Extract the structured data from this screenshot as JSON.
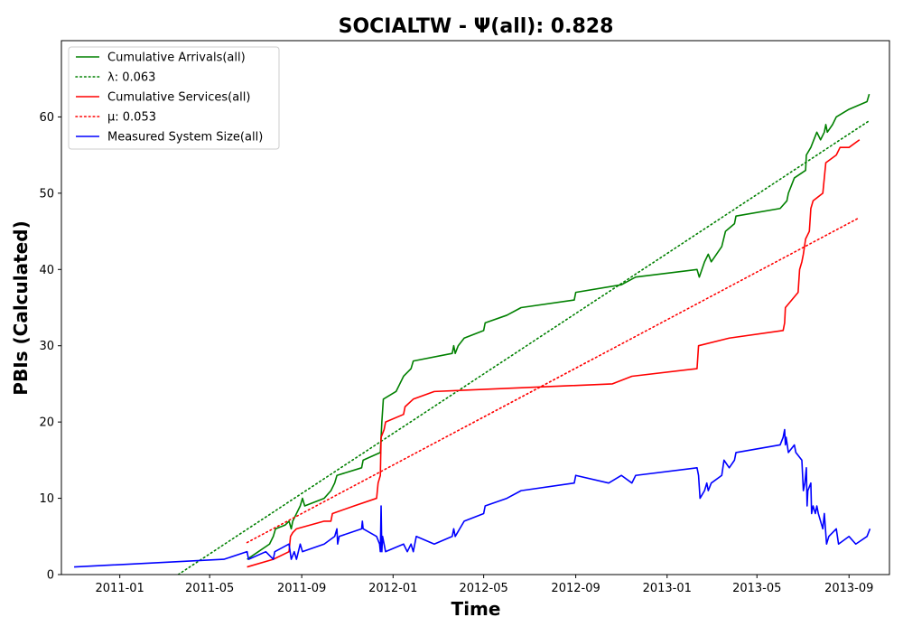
{
  "chart_data": {
    "type": "line",
    "title": "SOCIALTW -  Ψ(all): 0.828",
    "xlabel": "Time",
    "ylabel": "PBIs (Calculated)",
    "x_axis": "date",
    "xlim": [
      "2010-10-15",
      "2013-10-25"
    ],
    "ylim": [
      0,
      70
    ],
    "x_ticks": [
      "2011-01-01",
      "2011-05-01",
      "2011-09-01",
      "2012-01-01",
      "2012-05-01",
      "2012-09-01",
      "2013-01-01",
      "2013-05-01",
      "2013-09-01"
    ],
    "x_tick_labels": [
      "2011-01",
      "2011-05",
      "2011-09",
      "2012-01",
      "2012-05",
      "2012-09",
      "2013-01",
      "2013-05",
      "2013-09"
    ],
    "y_ticks": [
      0,
      10,
      20,
      30,
      40,
      50,
      60
    ],
    "y_tick_labels": [
      "0",
      "10",
      "20",
      "30",
      "40",
      "50",
      "60"
    ],
    "grid": false,
    "legend_position": "top-left",
    "series": [
      {
        "name": "Cumulative Arrivals(all)",
        "color": "#008000",
        "style": "solid",
        "points": [
          [
            "2011-06-20",
            2
          ],
          [
            "2011-07-05",
            3
          ],
          [
            "2011-07-20",
            4
          ],
          [
            "2011-07-25",
            5
          ],
          [
            "2011-07-28",
            6
          ],
          [
            "2011-08-10",
            6.5
          ],
          [
            "2011-08-15",
            7
          ],
          [
            "2011-08-18",
            6
          ],
          [
            "2011-08-20",
            7
          ],
          [
            "2011-08-25",
            8
          ],
          [
            "2011-08-30",
            9
          ],
          [
            "2011-09-02",
            10
          ],
          [
            "2011-09-05",
            9
          ],
          [
            "2011-10-01",
            10
          ],
          [
            "2011-10-10",
            11
          ],
          [
            "2011-10-15",
            12
          ],
          [
            "2011-10-18",
            13
          ],
          [
            "2011-11-20",
            14
          ],
          [
            "2011-11-22",
            15
          ],
          [
            "2011-12-15",
            16
          ],
          [
            "2011-12-17",
            20
          ],
          [
            "2011-12-19",
            23
          ],
          [
            "2012-01-05",
            24
          ],
          [
            "2012-01-10",
            25
          ],
          [
            "2012-01-15",
            26
          ],
          [
            "2012-01-25",
            27
          ],
          [
            "2012-01-28",
            28
          ],
          [
            "2012-03-20",
            29
          ],
          [
            "2012-03-22",
            30
          ],
          [
            "2012-03-24",
            29
          ],
          [
            "2012-03-28",
            30
          ],
          [
            "2012-04-05",
            31
          ],
          [
            "2012-05-01",
            32
          ],
          [
            "2012-05-03",
            33
          ],
          [
            "2012-06-01",
            34
          ],
          [
            "2012-06-20",
            35
          ],
          [
            "2012-08-30",
            36
          ],
          [
            "2012-09-01",
            37
          ],
          [
            "2012-11-01",
            38
          ],
          [
            "2012-11-20",
            39
          ],
          [
            "2013-02-10",
            40
          ],
          [
            "2013-02-13",
            39
          ],
          [
            "2013-02-20",
            41
          ],
          [
            "2013-02-25",
            42
          ],
          [
            "2013-03-01",
            41
          ],
          [
            "2013-03-15",
            43
          ],
          [
            "2013-03-20",
            45
          ],
          [
            "2013-04-01",
            46
          ],
          [
            "2013-04-03",
            47
          ],
          [
            "2013-06-01",
            48
          ],
          [
            "2013-06-10",
            49
          ],
          [
            "2013-06-12",
            50
          ],
          [
            "2013-06-20",
            52
          ],
          [
            "2013-07-05",
            53
          ],
          [
            "2013-07-06",
            55
          ],
          [
            "2013-07-12",
            56
          ],
          [
            "2013-07-20",
            58
          ],
          [
            "2013-07-25",
            57
          ],
          [
            "2013-07-30",
            58
          ],
          [
            "2013-08-01",
            59
          ],
          [
            "2013-08-03",
            58
          ],
          [
            "2013-08-10",
            59
          ],
          [
            "2013-08-15",
            60
          ],
          [
            "2013-09-01",
            61
          ],
          [
            "2013-09-25",
            62
          ],
          [
            "2013-09-28",
            63
          ]
        ]
      },
      {
        "name": "λ: 0.063",
        "color": "#008000",
        "style": "dotted",
        "points": [
          [
            "2011-03-20",
            0
          ],
          [
            "2013-09-28",
            59.5
          ]
        ]
      },
      {
        "name": "Cumulative Services(all)",
        "color": "#ff0000",
        "style": "solid",
        "points": [
          [
            "2011-06-20",
            1
          ],
          [
            "2011-07-25",
            2
          ],
          [
            "2011-08-15",
            3
          ],
          [
            "2011-08-17",
            5
          ],
          [
            "2011-08-20",
            5.5
          ],
          [
            "2011-08-25",
            6
          ],
          [
            "2011-10-01",
            7
          ],
          [
            "2011-10-10",
            7
          ],
          [
            "2011-10-12",
            8
          ],
          [
            "2011-11-10",
            9
          ],
          [
            "2011-12-10",
            10
          ],
          [
            "2011-12-12",
            12
          ],
          [
            "2011-12-15",
            13
          ],
          [
            "2011-12-16",
            18
          ],
          [
            "2011-12-20",
            19
          ],
          [
            "2011-12-22",
            20
          ],
          [
            "2012-01-15",
            21
          ],
          [
            "2012-01-17",
            22
          ],
          [
            "2012-01-28",
            23
          ],
          [
            "2012-02-25",
            24
          ],
          [
            "2012-10-20",
            25
          ],
          [
            "2012-11-15",
            26
          ],
          [
            "2013-02-10",
            27
          ],
          [
            "2013-02-12",
            30
          ],
          [
            "2013-03-25",
            31
          ],
          [
            "2013-06-05",
            32
          ],
          [
            "2013-06-07",
            33
          ],
          [
            "2013-06-08",
            35
          ],
          [
            "2013-06-25",
            37
          ],
          [
            "2013-06-27",
            40
          ],
          [
            "2013-06-30",
            41
          ],
          [
            "2013-07-02",
            42
          ],
          [
            "2013-07-05",
            44
          ],
          [
            "2013-07-10",
            45
          ],
          [
            "2013-07-12",
            48
          ],
          [
            "2013-07-15",
            49
          ],
          [
            "2013-07-28",
            50
          ],
          [
            "2013-07-30",
            52
          ],
          [
            "2013-08-01",
            54
          ],
          [
            "2013-08-15",
            55
          ],
          [
            "2013-08-20",
            56
          ],
          [
            "2013-09-01",
            56
          ],
          [
            "2013-09-15",
            57
          ]
        ]
      },
      {
        "name": "μ: 0.053",
        "color": "#ff0000",
        "style": "dotted",
        "points": [
          [
            "2011-06-20",
            4.2
          ],
          [
            "2013-09-15",
            46.8
          ]
        ]
      },
      {
        "name": "Measured System Size(all)",
        "color": "#0000ff",
        "style": "solid",
        "points": [
          [
            "2010-11-01",
            1
          ],
          [
            "2011-05-20",
            2
          ],
          [
            "2011-06-20",
            3
          ],
          [
            "2011-06-22",
            2
          ],
          [
            "2011-07-15",
            3
          ],
          [
            "2011-07-25",
            2
          ],
          [
            "2011-07-27",
            3
          ],
          [
            "2011-08-15",
            4
          ],
          [
            "2011-08-18",
            2
          ],
          [
            "2011-08-22",
            3
          ],
          [
            "2011-08-25",
            2
          ],
          [
            "2011-08-30",
            4
          ],
          [
            "2011-09-02",
            3
          ],
          [
            "2011-10-01",
            4
          ],
          [
            "2011-10-15",
            5
          ],
          [
            "2011-10-18",
            6
          ],
          [
            "2011-10-19",
            4
          ],
          [
            "2011-10-21",
            5
          ],
          [
            "2011-11-20",
            6
          ],
          [
            "2011-11-21",
            7
          ],
          [
            "2011-11-22",
            6
          ],
          [
            "2011-12-10",
            5
          ],
          [
            "2011-12-14",
            4
          ],
          [
            "2011-12-15",
            3
          ],
          [
            "2011-12-16",
            9
          ],
          [
            "2011-12-17",
            3
          ],
          [
            "2011-12-18",
            5
          ],
          [
            "2011-12-20",
            4
          ],
          [
            "2011-12-22",
            3
          ],
          [
            "2012-01-15",
            4
          ],
          [
            "2012-01-20",
            3
          ],
          [
            "2012-01-25",
            4
          ],
          [
            "2012-01-28",
            3
          ],
          [
            "2012-02-01",
            5
          ],
          [
            "2012-02-25",
            4
          ],
          [
            "2012-03-20",
            5
          ],
          [
            "2012-03-22",
            6
          ],
          [
            "2012-03-24",
            5
          ],
          [
            "2012-04-05",
            7
          ],
          [
            "2012-05-01",
            8
          ],
          [
            "2012-05-03",
            9
          ],
          [
            "2012-06-01",
            10
          ],
          [
            "2012-06-20",
            11
          ],
          [
            "2012-08-30",
            12
          ],
          [
            "2012-09-01",
            13
          ],
          [
            "2012-10-15",
            12
          ],
          [
            "2012-11-01",
            13
          ],
          [
            "2012-11-15",
            12
          ],
          [
            "2012-11-20",
            13
          ],
          [
            "2013-02-10",
            14
          ],
          [
            "2013-02-12",
            13
          ],
          [
            "2013-02-14",
            10
          ],
          [
            "2013-02-20",
            11
          ],
          [
            "2013-02-23",
            12
          ],
          [
            "2013-02-25",
            11
          ],
          [
            "2013-03-01",
            12
          ],
          [
            "2013-03-15",
            13
          ],
          [
            "2013-03-18",
            15
          ],
          [
            "2013-03-25",
            14
          ],
          [
            "2013-04-01",
            15
          ],
          [
            "2013-04-03",
            16
          ],
          [
            "2013-06-01",
            17
          ],
          [
            "2013-06-05",
            18
          ],
          [
            "2013-06-07",
            19
          ],
          [
            "2013-06-08",
            17
          ],
          [
            "2013-06-09",
            18
          ],
          [
            "2013-06-12",
            16
          ],
          [
            "2013-06-20",
            17
          ],
          [
            "2013-06-22",
            16
          ],
          [
            "2013-06-30",
            15
          ],
          [
            "2013-07-02",
            11
          ],
          [
            "2013-07-04",
            12
          ],
          [
            "2013-07-06",
            14
          ],
          [
            "2013-07-07",
            9
          ],
          [
            "2013-07-08",
            11
          ],
          [
            "2013-07-12",
            12
          ],
          [
            "2013-07-13",
            8
          ],
          [
            "2013-07-15",
            9
          ],
          [
            "2013-07-18",
            8
          ],
          [
            "2013-07-20",
            9
          ],
          [
            "2013-07-22",
            8
          ],
          [
            "2013-07-28",
            6
          ],
          [
            "2013-07-30",
            8
          ],
          [
            "2013-08-02",
            4
          ],
          [
            "2013-08-05",
            5
          ],
          [
            "2013-08-15",
            6
          ],
          [
            "2013-08-18",
            4
          ],
          [
            "2013-09-01",
            5
          ],
          [
            "2013-09-10",
            4
          ],
          [
            "2013-09-25",
            5
          ],
          [
            "2013-09-29",
            6
          ]
        ]
      }
    ]
  }
}
